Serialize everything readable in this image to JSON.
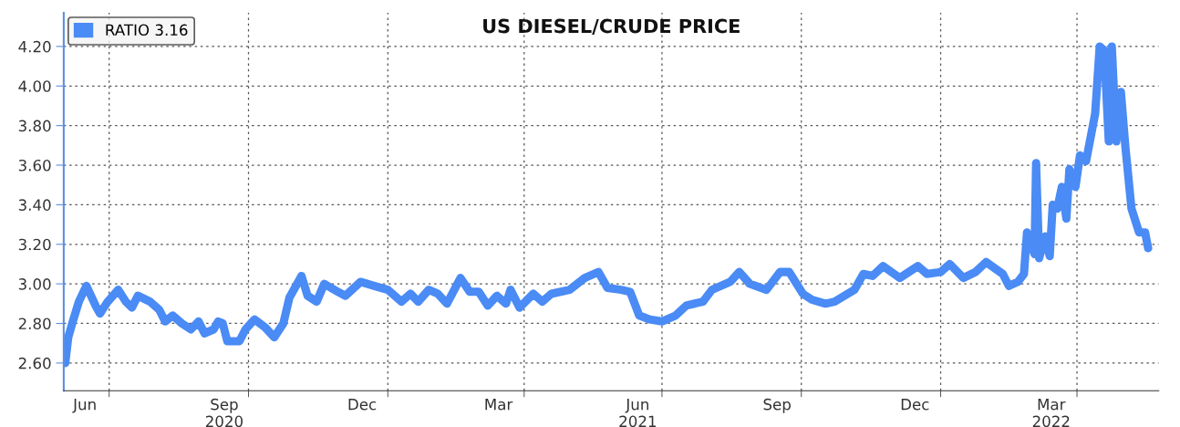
{
  "chart_data": {
    "type": "line",
    "title": "US DIESEL/CRUDE PRICE",
    "x": [
      "2020-06-02",
      "2020-06-04",
      "2020-06-07",
      "2020-06-11",
      "2020-06-16",
      "2020-06-19",
      "2020-06-22",
      "2020-06-25",
      "2020-06-30",
      "2020-07-07",
      "2020-07-12",
      "2020-07-16",
      "2020-07-20",
      "2020-07-28",
      "2020-08-03",
      "2020-08-07",
      "2020-08-12",
      "2020-08-18",
      "2020-08-24",
      "2020-08-29",
      "2020-09-02",
      "2020-09-08",
      "2020-09-11",
      "2020-09-14",
      "2020-09-17",
      "2020-09-25",
      "2020-09-29",
      "2020-10-05",
      "2020-10-12",
      "2020-10-18",
      "2020-10-24",
      "2020-10-28",
      "2020-11-05",
      "2020-11-09",
      "2020-11-15",
      "2020-11-20",
      "2020-11-29",
      "2020-12-04",
      "2020-12-14",
      "2020-12-23",
      "2021-01-01",
      "2021-01-10",
      "2021-01-16",
      "2021-01-21",
      "2021-01-28",
      "2021-02-03",
      "2021-02-09",
      "2021-02-18",
      "2021-02-24",
      "2021-03-02",
      "2021-03-08",
      "2021-03-14",
      "2021-03-20",
      "2021-03-23",
      "2021-03-29",
      "2021-04-07",
      "2021-04-13",
      "2021-04-19",
      "2021-05-01",
      "2021-05-11",
      "2021-05-20",
      "2021-05-26",
      "2021-06-04",
      "2021-06-10",
      "2021-06-16",
      "2021-06-23",
      "2021-07-01",
      "2021-07-10",
      "2021-07-17",
      "2021-07-28",
      "2021-08-03",
      "2021-08-15",
      "2021-08-21",
      "2021-08-28",
      "2021-09-08",
      "2021-09-17",
      "2021-09-23",
      "2021-10-02",
      "2021-10-08",
      "2021-10-17",
      "2021-10-23",
      "2021-11-05",
      "2021-11-11",
      "2021-11-17",
      "2021-11-24",
      "2021-12-05",
      "2021-12-17",
      "2021-12-23",
      "2022-01-01",
      "2022-01-07",
      "2022-01-16",
      "2022-01-24",
      "2022-01-31",
      "2022-02-11",
      "2022-02-15",
      "2022-02-21",
      "2022-02-25",
      "2022-02-27",
      "2022-03-04",
      "2022-03-05",
      "2022-03-07",
      "2022-03-11",
      "2022-03-14",
      "2022-03-16",
      "2022-03-19",
      "2022-03-22",
      "2022-03-25",
      "2022-03-27",
      "2022-03-31",
      "2022-04-03",
      "2022-04-07",
      "2022-04-10",
      "2022-04-13",
      "2022-04-16",
      "2022-04-19",
      "2022-04-22",
      "2022-04-24",
      "2022-04-27",
      "2022-04-30",
      "2022-05-03",
      "2022-05-07",
      "2022-05-12",
      "2022-05-16",
      "2022-05-18"
    ],
    "series": [
      {
        "name": "RATIO 3.16",
        "color": "#4a8bf5",
        "values": [
          2.6,
          2.73,
          2.81,
          2.91,
          2.99,
          2.94,
          2.89,
          2.85,
          2.91,
          2.97,
          2.91,
          2.88,
          2.94,
          2.91,
          2.87,
          2.81,
          2.84,
          2.8,
          2.77,
          2.81,
          2.75,
          2.77,
          2.81,
          2.8,
          2.71,
          2.71,
          2.77,
          2.82,
          2.78,
          2.73,
          2.8,
          2.93,
          3.04,
          2.94,
          2.91,
          3.0,
          2.96,
          2.94,
          3.01,
          2.99,
          2.97,
          2.91,
          2.95,
          2.91,
          2.97,
          2.95,
          2.9,
          3.03,
          2.96,
          2.96,
          2.89,
          2.94,
          2.9,
          2.97,
          2.88,
          2.95,
          2.91,
          2.95,
          2.97,
          3.03,
          3.06,
          2.98,
          2.97,
          2.96,
          2.84,
          2.82,
          2.81,
          2.84,
          2.89,
          2.91,
          2.97,
          3.01,
          3.06,
          3.0,
          2.97,
          3.06,
          3.06,
          2.95,
          2.92,
          2.9,
          2.91,
          2.97,
          3.05,
          3.04,
          3.09,
          3.03,
          3.09,
          3.05,
          3.06,
          3.1,
          3.03,
          3.06,
          3.11,
          3.05,
          2.99,
          3.01,
          3.05,
          3.26,
          3.15,
          3.61,
          3.13,
          3.24,
          3.14,
          3.4,
          3.38,
          3.49,
          3.33,
          3.58,
          3.49,
          3.65,
          3.62,
          3.74,
          3.86,
          4.2,
          4.18,
          3.72,
          4.2,
          3.72,
          3.97,
          3.69,
          3.38,
          3.26,
          3.26,
          3.18
        ]
      }
    ],
    "xlim": [
      "2020-06-01",
      "2022-05-25"
    ],
    "xticks": [
      {
        "value": "2020-06-15",
        "label": "Jun"
      },
      {
        "value": "2020-09-15",
        "label": "Sep\n2020"
      },
      {
        "value": "2020-12-15",
        "label": "Dec"
      },
      {
        "value": "2021-03-15",
        "label": "Mar"
      },
      {
        "value": "2021-06-15",
        "label": "Jun\n2021"
      },
      {
        "value": "2021-09-15",
        "label": "Sep"
      },
      {
        "value": "2021-12-15",
        "label": "Dec"
      },
      {
        "value": "2022-03-15",
        "label": "Mar\n2022"
      },
      {
        "value": "2020-07-01",
        "label": null
      },
      {
        "value": "2020-10-01",
        "label": null
      },
      {
        "value": "2021-01-01",
        "label": null
      },
      {
        "value": "2021-04-01",
        "label": null
      },
      {
        "value": "2021-07-01",
        "label": null
      },
      {
        "value": "2021-10-01",
        "label": null
      },
      {
        "value": "2022-01-01",
        "label": null
      },
      {
        "value": "2022-04-01",
        "label": null
      }
    ],
    "ylim": [
      2.46,
      4.37
    ],
    "yticks": [
      {
        "value": 2.6,
        "label": "2.60"
      },
      {
        "value": 2.8,
        "label": "2.80"
      },
      {
        "value": 3.0,
        "label": "3.00"
      },
      {
        "value": 3.2,
        "label": "3.20"
      },
      {
        "value": 3.4,
        "label": "3.40"
      },
      {
        "value": 3.6,
        "label": "3.60"
      },
      {
        "value": 3.8,
        "label": "3.80"
      },
      {
        "value": 4.0,
        "label": "4.00"
      },
      {
        "value": 4.2,
        "label": "4.20"
      }
    ],
    "grid": true,
    "legend": "top left",
    "line_style": "solid"
  }
}
